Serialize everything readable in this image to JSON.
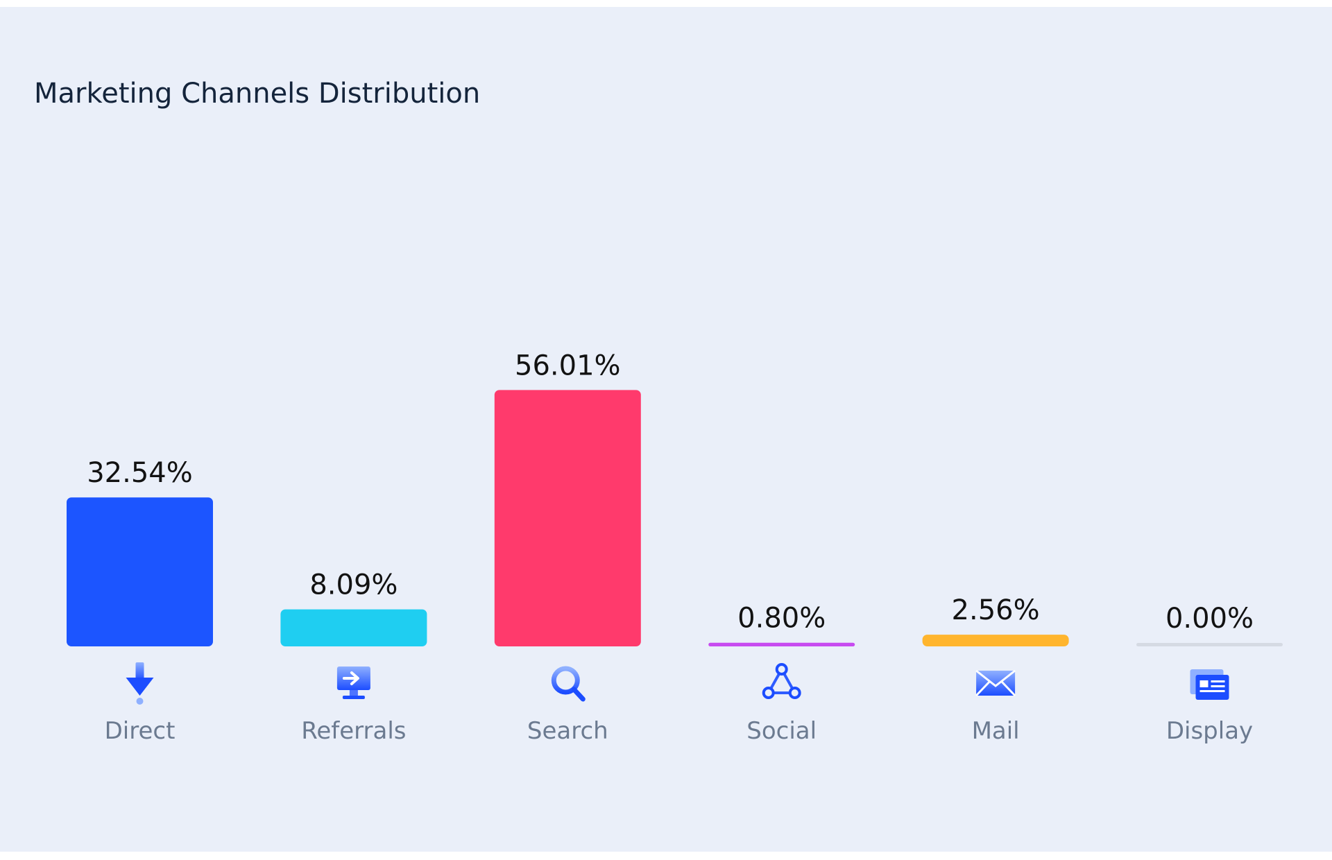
{
  "chart_data": {
    "type": "bar",
    "title": "Marketing Channels Distribution",
    "categories": [
      "Direct",
      "Referrals",
      "Search",
      "Social",
      "Mail",
      "Display"
    ],
    "values": [
      32.54,
      8.09,
      56.01,
      0.8,
      2.56,
      0.0
    ],
    "value_labels": [
      "32.54%",
      "8.09%",
      "56.01%",
      "0.80%",
      "2.56%",
      "0.00%"
    ],
    "colors": [
      "#1c55ff",
      "#1fcef1",
      "#ff3a6c",
      "#c74bf0",
      "#ffb52e",
      "#d5dae3"
    ],
    "icons": [
      "arrow-down-icon",
      "referral-monitor-icon",
      "search-icon",
      "social-share-icon",
      "mail-icon",
      "display-window-icon"
    ],
    "xlabel": "",
    "ylabel": "",
    "grid": false
  }
}
